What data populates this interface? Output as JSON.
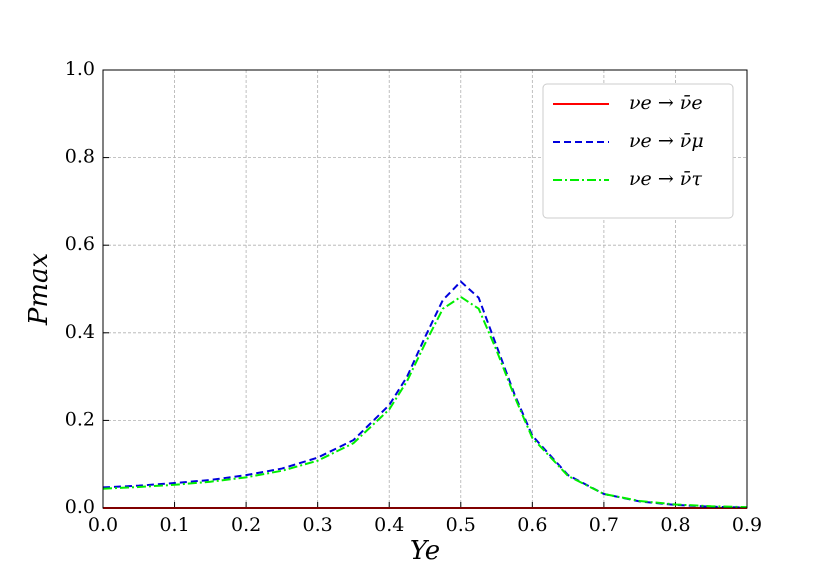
{
  "chart_data": {
    "type": "line",
    "xlabel": "Ye",
    "ylabel": "Pmax",
    "x": [
      0,
      0.05,
      0.1,
      0.15,
      0.2,
      0.25,
      0.3,
      0.35,
      0.4,
      0.425,
      0.45,
      0.475,
      0.5,
      0.525,
      0.55,
      0.575,
      0.6,
      0.65,
      0.7,
      0.75,
      0.8,
      0.85,
      0.9
    ],
    "series": [
      {
        "name": "νe → ν̄e",
        "color": "#ff0000",
        "linestyle": "solid",
        "values": [
          0,
          0,
          0,
          0,
          0,
          0,
          0,
          0,
          0,
          0,
          0,
          0,
          0,
          0,
          0,
          0,
          0,
          0,
          0,
          0,
          0,
          0,
          0
        ]
      },
      {
        "name": "νe → ν̄μ",
        "color": "#0000dd",
        "linestyle": "dashed",
        "values": [
          0.047,
          0.051,
          0.057,
          0.064,
          0.075,
          0.09,
          0.115,
          0.155,
          0.235,
          0.3,
          0.39,
          0.475,
          0.517,
          0.48,
          0.37,
          0.26,
          0.165,
          0.075,
          0.032,
          0.015,
          0.007,
          0.003,
          0.001
        ]
      },
      {
        "name": "νe → ν̄τ",
        "color": "#00ee00",
        "linestyle": "dashdot",
        "values": [
          0.044,
          0.048,
          0.053,
          0.06,
          0.07,
          0.085,
          0.108,
          0.148,
          0.225,
          0.29,
          0.375,
          0.455,
          0.482,
          0.455,
          0.36,
          0.255,
          0.16,
          0.073,
          0.032,
          0.016,
          0.008,
          0.004,
          0.002
        ]
      }
    ],
    "xlim": [
      0,
      0.9
    ],
    "xticks": [
      {
        "value": 0,
        "label": "0.0"
      },
      0.1,
      0.2,
      0.3,
      0.4,
      0.5,
      0.6,
      0.7,
      0.8,
      0.9
    ],
    "ylim": [
      0,
      1
    ],
    "yticks": [
      {
        "value": 0,
        "label": "0.0"
      },
      0.2,
      0.4,
      0.6,
      0.8,
      {
        "value": 1,
        "label": "1.0"
      }
    ],
    "grid": true,
    "legend": "upper right"
  }
}
